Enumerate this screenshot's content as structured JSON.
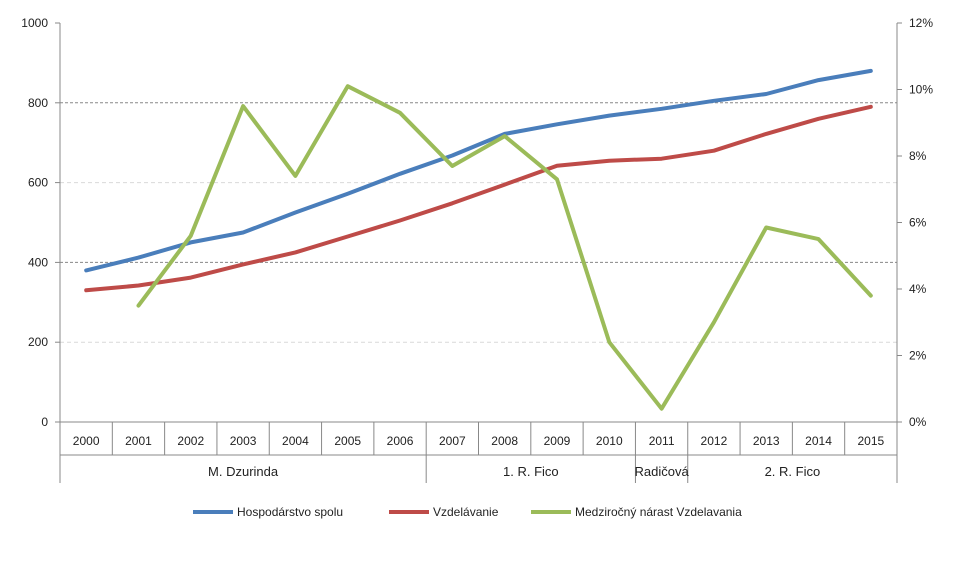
{
  "chart_data": {
    "type": "line",
    "categories": [
      "2000",
      "2001",
      "2002",
      "2003",
      "2004",
      "2005",
      "2006",
      "2007",
      "2008",
      "2009",
      "2010",
      "2011",
      "2012",
      "2013",
      "2014",
      "2015"
    ],
    "groups": [
      {
        "label": "M. Dzurinda",
        "categories": [
          "2000",
          "2001",
          "2002",
          "2003",
          "2004",
          "2005",
          "2006"
        ]
      },
      {
        "label": "1. R. Fico",
        "categories": [
          "2007",
          "2008",
          "2009",
          "2010"
        ]
      },
      {
        "label": "Radičová",
        "categories": [
          "2011"
        ]
      },
      {
        "label": "2. R. Fico",
        "categories": [
          "2012",
          "2013",
          "2014",
          "2015"
        ]
      }
    ],
    "y_left": {
      "range": [
        0,
        1000
      ],
      "ticks": [
        "0",
        "200",
        "400",
        "600",
        "800",
        "1000"
      ]
    },
    "y_right": {
      "range": [
        0,
        12
      ],
      "ticks": [
        "0%",
        "2%",
        "4%",
        "6%",
        "8%",
        "10%",
        "12%"
      ]
    },
    "series": [
      {
        "name": "Hospodárstvo spolu",
        "axis": "left",
        "color": "#4a7ebb",
        "values": [
          380,
          412,
          450,
          475,
          525,
          572,
          622,
          668,
          722,
          746,
          768,
          785,
          805,
          822,
          857,
          880
        ]
      },
      {
        "name": "Vzdelávanie",
        "axis": "left",
        "color": "#be4b48",
        "values": [
          330,
          342,
          362,
          395,
          425,
          465,
          505,
          548,
          595,
          642,
          655,
          660,
          680,
          722,
          760,
          790
        ]
      },
      {
        "name": "Medziročný nárast Vzdelavania",
        "axis": "right",
        "color": "#9bbb59",
        "values": [
          null,
          3.5,
          5.6,
          9.5,
          7.4,
          10.1,
          9.3,
          7.7,
          8.6,
          7.3,
          2.4,
          0.4,
          3.0,
          5.85,
          5.5,
          3.8
        ]
      }
    ],
    "dashed_gridlines_at": [
      400,
      800
    ],
    "legend": {
      "placement": "bottom"
    }
  }
}
